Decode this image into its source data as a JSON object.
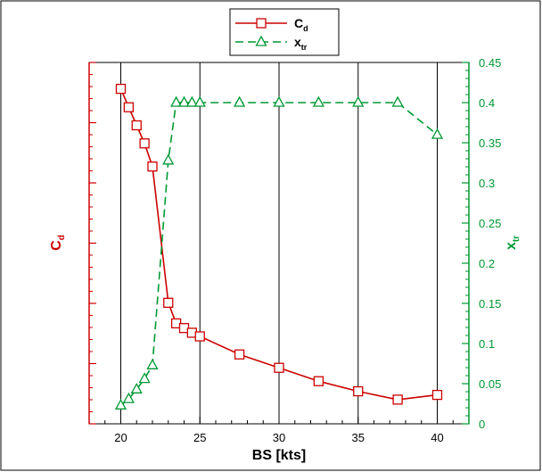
{
  "chart_data": {
    "type": "line",
    "xlabel": "BS [kts]",
    "ylabel_left": {
      "base": "C",
      "sub": "d"
    },
    "ylabel_right": {
      "base": "x",
      "sub": "tr"
    },
    "xlim": [
      18,
      42
    ],
    "xticks": [
      20,
      25,
      30,
      35,
      40
    ],
    "ylim_right": [
      0,
      0.45
    ],
    "yticks_right": [
      0,
      0.05,
      0.1,
      0.15,
      0.2,
      0.25,
      0.3,
      0.35,
      0.4,
      0.45
    ],
    "yticklabels_right": [
      "0",
      "0.05",
      "0.1",
      "0.15",
      "0.2",
      "0.25",
      "0.3",
      "0.35",
      "0.4",
      "0.45"
    ],
    "ylim_left": [
      0,
      1
    ],
    "yticks_left_minor_count": 6,
    "grid": "vertical",
    "legend_placement": "top-center",
    "series": [
      {
        "name": {
          "base": "C",
          "sub": "d"
        },
        "axis": "left",
        "color": "#cc0000",
        "marker": "square",
        "dash": "solid",
        "x": [
          20,
          20.5,
          21,
          21.5,
          22,
          23,
          23.5,
          24,
          24.5,
          25,
          27.5,
          30,
          32.5,
          35,
          37.5,
          40
        ],
        "y": [
          0.927,
          0.876,
          0.826,
          0.776,
          0.712,
          0.335,
          0.278,
          0.265,
          0.252,
          0.242,
          0.192,
          0.155,
          0.118,
          0.09,
          0.067,
          0.08
        ]
      },
      {
        "name": {
          "base": "x",
          "sub": "tr"
        },
        "axis": "right",
        "color": "#009933",
        "marker": "triangle",
        "dash": "dashed",
        "x": [
          20,
          20.5,
          21,
          21.5,
          22,
          23,
          23.5,
          24,
          24.5,
          25,
          27.5,
          30,
          32.5,
          35,
          37.5,
          40
        ],
        "y": [
          0.023,
          0.031,
          0.043,
          0.056,
          0.073,
          0.328,
          0.4,
          0.4,
          0.4,
          0.4,
          0.4,
          0.4,
          0.4,
          0.4,
          0.4,
          0.36
        ]
      }
    ]
  }
}
